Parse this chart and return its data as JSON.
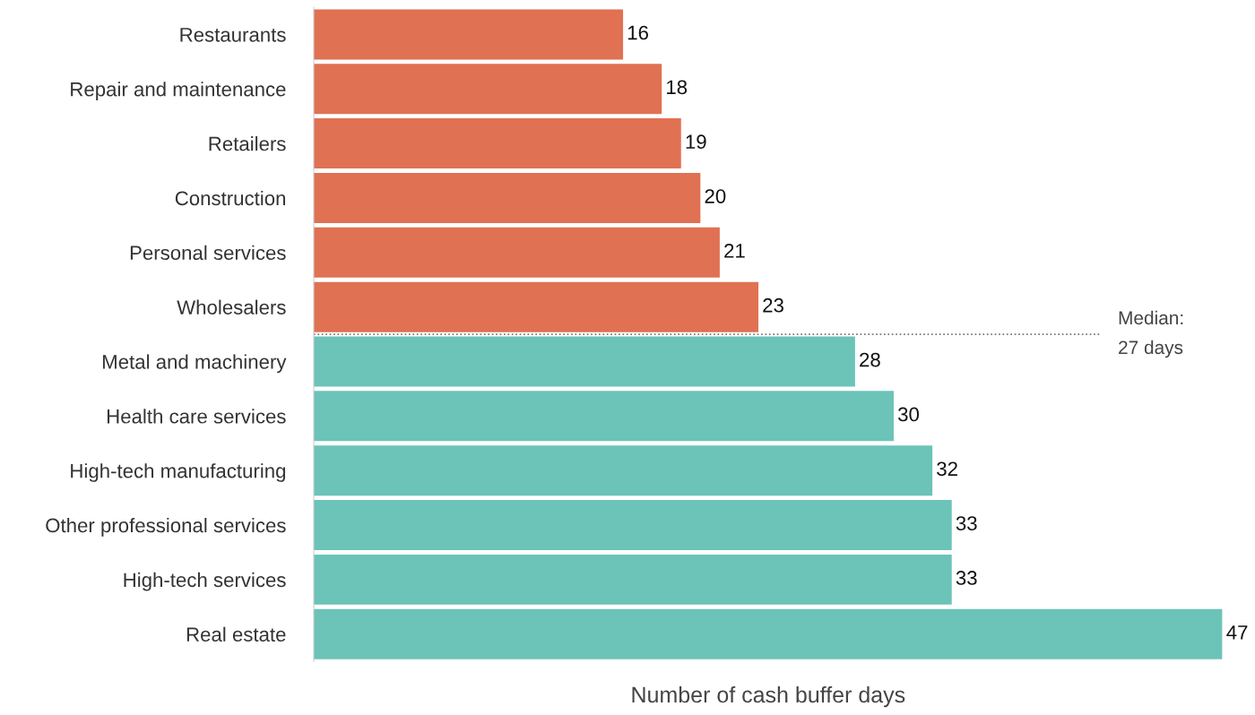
{
  "chart_data": {
    "type": "bar",
    "orientation": "horizontal",
    "xlabel": "Number of cash buffer days",
    "categories": [
      "Restaurants",
      "Repair and maintenance",
      "Retailers",
      "Construction",
      "Personal services",
      "Wholesalers",
      "Metal and machinery",
      "Health care services",
      "High-tech manufacturing",
      "Other professional services",
      "High-tech services",
      "Real estate"
    ],
    "values": [
      16,
      18,
      19,
      20,
      21,
      23,
      28,
      30,
      32,
      33,
      33,
      47
    ],
    "colors": [
      "#e07152",
      "#e07152",
      "#e07152",
      "#e07152",
      "#e07152",
      "#e07152",
      "#6cc3b7",
      "#6cc3b7",
      "#6cc3b7",
      "#6cc3b7",
      "#6cc3b7",
      "#6cc3b7"
    ],
    "xlim": [
      0,
      47
    ],
    "data_labels": true,
    "tick_labels": "y",
    "grid": false,
    "legend": false,
    "annotations": [
      "Median:\n27 days"
    ]
  }
}
